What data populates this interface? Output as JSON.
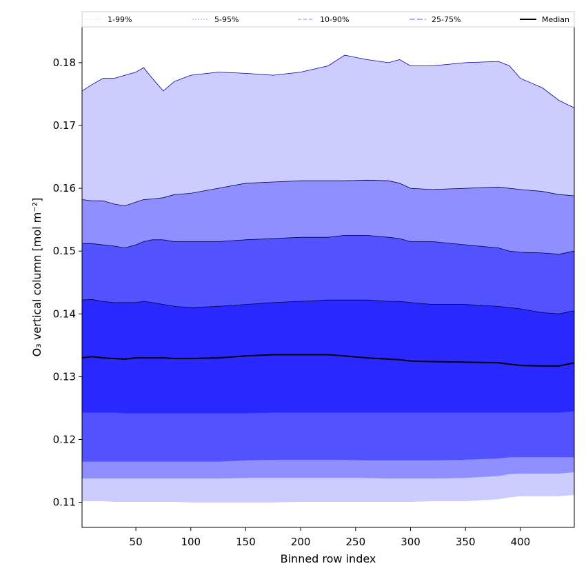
{
  "chart_data": {
    "type": "area",
    "xlabel": "Binned row index",
    "ylabel": "O₃ vertical column [mol m⁻²]",
    "xlim": [
      1,
      449
    ],
    "ylim": [
      0.106,
      0.1857
    ],
    "xticks": [
      50,
      100,
      150,
      200,
      250,
      300,
      350,
      400
    ],
    "yticks": [
      0.11,
      0.12,
      0.13,
      0.14,
      0.15,
      0.16,
      0.17,
      0.18
    ],
    "ytick_labels": [
      "0.11",
      "0.12",
      "0.13",
      "0.14",
      "0.15",
      "0.16",
      "0.17",
      "0.18"
    ],
    "legend_position": "top, spanning width",
    "x": [
      1,
      10,
      20,
      30,
      40,
      50,
      57,
      65,
      75,
      85,
      100,
      125,
      150,
      175,
      200,
      225,
      240,
      260,
      280,
      290,
      300,
      320,
      350,
      380,
      390,
      400,
      420,
      435,
      449
    ],
    "bands": [
      {
        "name": "1-99%",
        "color": "#ccccff",
        "line_color": "#ccccff",
        "dash": "1,2",
        "upper": [
          0.1755,
          0.1765,
          0.1775,
          0.1775,
          0.178,
          0.1785,
          0.1792,
          0.1775,
          0.1755,
          0.177,
          0.178,
          0.1785,
          0.1783,
          0.178,
          0.1785,
          0.1795,
          0.1812,
          0.1805,
          0.18,
          0.1805,
          0.1795,
          0.1795,
          0.18,
          0.1802,
          0.1795,
          0.1775,
          0.176,
          0.174,
          0.1728
        ],
        "lower": [
          0.1102,
          0.1102,
          0.1102,
          0.1101,
          0.1101,
          0.1101,
          0.1101,
          0.1101,
          0.1101,
          0.1101,
          0.11,
          0.11,
          0.11,
          0.11,
          0.1101,
          0.1101,
          0.1101,
          0.1101,
          0.1101,
          0.1101,
          0.1101,
          0.1102,
          0.1102,
          0.1105,
          0.1108,
          0.111,
          0.111,
          0.111,
          0.1112
        ]
      },
      {
        "name": "5-95%",
        "color": "#8f8fff",
        "line_color": "#8f8fff",
        "dash": "2,2",
        "upper": [
          0.1582,
          0.158,
          0.158,
          0.1575,
          0.1572,
          0.1578,
          0.1582,
          0.1583,
          0.1585,
          0.159,
          0.1592,
          0.16,
          0.1608,
          0.161,
          0.1612,
          0.1612,
          0.1612,
          0.1613,
          0.1612,
          0.1608,
          0.16,
          0.1598,
          0.16,
          0.1602,
          0.16,
          0.1598,
          0.1595,
          0.159,
          0.1588
        ]
      },
      {
        "name": "10-90%",
        "color": "#5252ff",
        "line_color": "#8080ff",
        "dash": "5,3",
        "upper": [
          0.1512,
          0.1512,
          0.151,
          0.1508,
          0.1505,
          0.151,
          0.1515,
          0.1518,
          0.1518,
          0.1515,
          0.1515,
          0.1515,
          0.1518,
          0.152,
          0.1522,
          0.1522,
          0.1525,
          0.1525,
          0.1522,
          0.152,
          0.1515,
          0.1515,
          0.151,
          0.1505,
          0.15,
          0.1498,
          0.1497,
          0.1495,
          0.15
        ]
      },
      {
        "name": "25-75%",
        "color": "#2929ff",
        "line_color": "#5a5aff",
        "dash": "8,3",
        "upper": [
          0.1422,
          0.1423,
          0.142,
          0.1418,
          0.1418,
          0.1418,
          0.142,
          0.1418,
          0.1415,
          0.1412,
          0.141,
          0.1412,
          0.1415,
          0.1418,
          0.142,
          0.1422,
          0.1422,
          0.1422,
          0.142,
          0.142,
          0.1418,
          0.1415,
          0.1415,
          0.1412,
          0.141,
          0.1408,
          0.1402,
          0.14,
          0.1405
        ]
      }
    ],
    "lower_band_edges": {
      "5": [
        0.1138,
        0.1138,
        0.1138,
        0.1138,
        0.1138,
        0.1138,
        0.1138,
        0.1138,
        0.1138,
        0.1138,
        0.1138,
        0.1138,
        0.1139,
        0.1139,
        0.1139,
        0.1139,
        0.1139,
        0.1139,
        0.1138,
        0.1138,
        0.1138,
        0.1138,
        0.1139,
        0.1142,
        0.1145,
        0.1146,
        0.1146,
        0.1146,
        0.1148
      ],
      "10": [
        0.1165,
        0.1165,
        0.1165,
        0.1165,
        0.1165,
        0.1165,
        0.1165,
        0.1165,
        0.1165,
        0.1165,
        0.1165,
        0.1165,
        0.1167,
        0.1168,
        0.1168,
        0.1168,
        0.1168,
        0.1167,
        0.1167,
        0.1167,
        0.1167,
        0.1167,
        0.1168,
        0.117,
        0.1172,
        0.1172,
        0.1172,
        0.1172,
        0.1172
      ],
      "25": [
        0.1243,
        0.1243,
        0.1243,
        0.1243,
        0.1242,
        0.1242,
        0.1242,
        0.1242,
        0.1242,
        0.1242,
        0.1242,
        0.1242,
        0.1242,
        0.1243,
        0.1243,
        0.1243,
        0.1243,
        0.1243,
        0.1243,
        0.1243,
        0.1243,
        0.1243,
        0.1243,
        0.1243,
        0.1243,
        0.1243,
        0.1243,
        0.1243,
        0.1245
      ]
    },
    "median": {
      "name": "Median",
      "color": "#000000",
      "values": [
        0.133,
        0.1332,
        0.133,
        0.1329,
        0.1328,
        0.133,
        0.133,
        0.133,
        0.133,
        0.1329,
        0.1329,
        0.133,
        0.1333,
        0.1335,
        0.1335,
        0.1335,
        0.1333,
        0.133,
        0.1328,
        0.1327,
        0.1325,
        0.1324,
        0.1323,
        0.1322,
        0.132,
        0.1318,
        0.1317,
        0.1317,
        0.1322
      ]
    },
    "legend": [
      "1-99%",
      "5-95%",
      "10-90%",
      "25-75%",
      "Median"
    ]
  }
}
